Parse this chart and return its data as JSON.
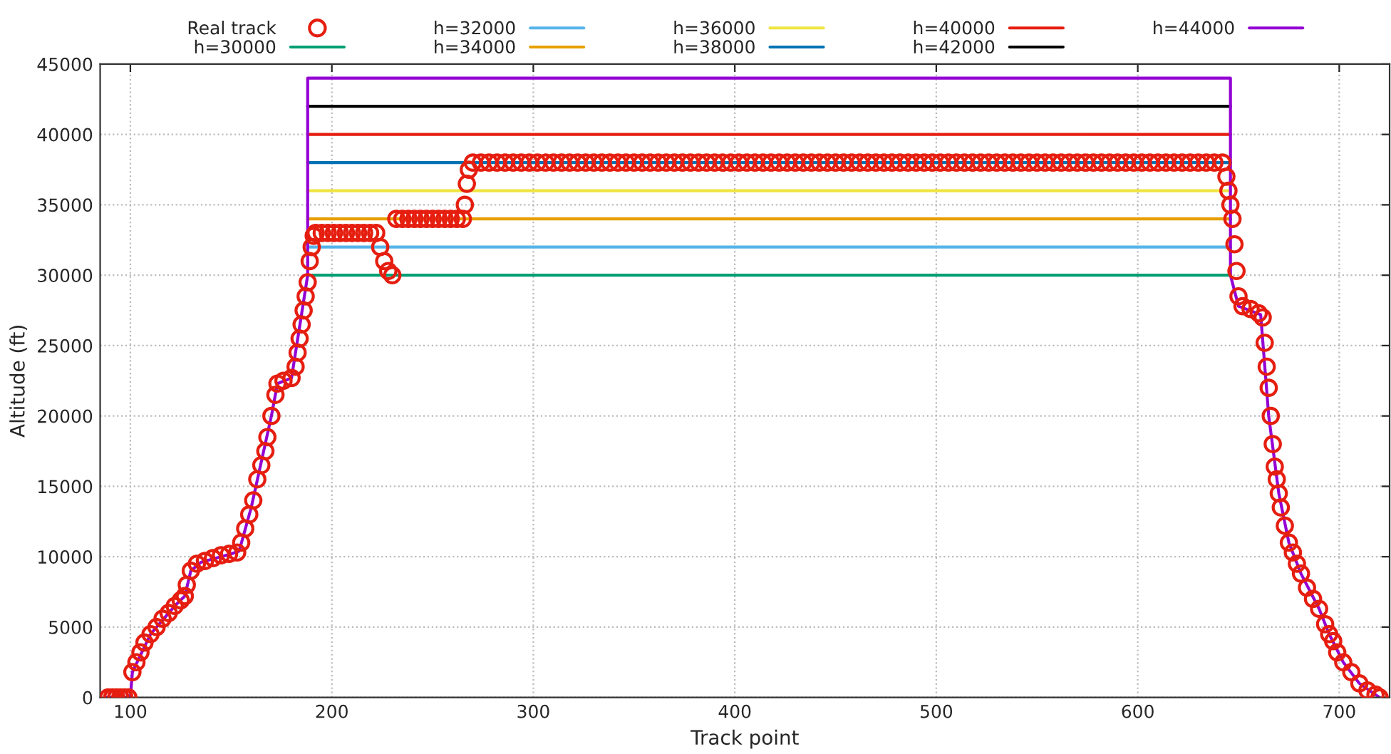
{
  "chart_data": {
    "type": "line",
    "xlabel": "Track point",
    "ylabel": "Altitude (ft)",
    "xlim": [
      85,
      725
    ],
    "xticks": [
      100,
      200,
      300,
      400,
      500,
      600,
      700
    ],
    "ylim": [
      0,
      45000
    ],
    "yticks": [
      0,
      5000,
      10000,
      15000,
      20000,
      25000,
      30000,
      35000,
      40000,
      45000
    ],
    "grid": true,
    "legend": "top",
    "series": [
      {
        "name": "Real track",
        "type": "scatter",
        "marker": "circle",
        "color": "#e51e10",
        "x": [
          89,
          91,
          93,
          95,
          97,
          99,
          101,
          103,
          105,
          107,
          110,
          113,
          116,
          119,
          122,
          125,
          127,
          128,
          130,
          133,
          137,
          141,
          145,
          149,
          153,
          155,
          157,
          159,
          161,
          163,
          165,
          167,
          168,
          170,
          172,
          173,
          176,
          180,
          182,
          183,
          184,
          185,
          186,
          187,
          188,
          189,
          190,
          191,
          192,
          195,
          198,
          201,
          204,
          207,
          210,
          213,
          216,
          219,
          222,
          224,
          226,
          228,
          230,
          232,
          235,
          238,
          241,
          244,
          247,
          250,
          253,
          256,
          259,
          262,
          265,
          266,
          267,
          268,
          270,
          274,
          278,
          282,
          286,
          290,
          294,
          298,
          302,
          306,
          310,
          314,
          318,
          322,
          326,
          330,
          334,
          338,
          342,
          346,
          350,
          354,
          358,
          362,
          366,
          370,
          374,
          378,
          382,
          386,
          390,
          394,
          398,
          402,
          406,
          410,
          414,
          418,
          422,
          426,
          430,
          434,
          438,
          442,
          446,
          450,
          454,
          458,
          462,
          466,
          470,
          474,
          478,
          482,
          486,
          490,
          494,
          498,
          502,
          506,
          510,
          514,
          518,
          522,
          526,
          530,
          534,
          538,
          542,
          546,
          550,
          554,
          558,
          562,
          566,
          570,
          574,
          578,
          582,
          586,
          590,
          594,
          598,
          602,
          606,
          610,
          614,
          618,
          622,
          626,
          630,
          634,
          638,
          642,
          644,
          645,
          646,
          647,
          648,
          649,
          650,
          652,
          656,
          660,
          662,
          663,
          664,
          665,
          666,
          667,
          668,
          669,
          670,
          671,
          673,
          675,
          677,
          679,
          681,
          684,
          687,
          690,
          693,
          695,
          697,
          699,
          702,
          706,
          710,
          714,
          718,
          720
        ],
        "values": [
          0,
          0,
          0,
          0,
          0,
          0,
          1800,
          2500,
          3200,
          3900,
          4500,
          5000,
          5600,
          6000,
          6500,
          6900,
          7200,
          8000,
          9000,
          9500,
          9700,
          9900,
          10100,
          10200,
          10300,
          11000,
          12000,
          13000,
          14000,
          15500,
          16500,
          17500,
          18500,
          20000,
          21500,
          22300,
          22500,
          22700,
          23500,
          24500,
          25500,
          26500,
          27500,
          28500,
          29500,
          31000,
          32000,
          32800,
          33000,
          33000,
          33000,
          33000,
          33000,
          33000,
          33000,
          33000,
          33000,
          33000,
          33000,
          32000,
          31000,
          30300,
          30000,
          34000,
          34000,
          34000,
          34000,
          34000,
          34000,
          34000,
          34000,
          34000,
          34000,
          34000,
          34000,
          35000,
          36500,
          37500,
          38000,
          38000,
          38000,
          38000,
          38000,
          38000,
          38000,
          38000,
          38000,
          38000,
          38000,
          38000,
          38000,
          38000,
          38000,
          38000,
          38000,
          38000,
          38000,
          38000,
          38000,
          38000,
          38000,
          38000,
          38000,
          38000,
          38000,
          38000,
          38000,
          38000,
          38000,
          38000,
          38000,
          38000,
          38000,
          38000,
          38000,
          38000,
          38000,
          38000,
          38000,
          38000,
          38000,
          38000,
          38000,
          38000,
          38000,
          38000,
          38000,
          38000,
          38000,
          38000,
          38000,
          38000,
          38000,
          38000,
          38000,
          38000,
          38000,
          38000,
          38000,
          38000,
          38000,
          38000,
          38000,
          38000,
          38000,
          38000,
          38000,
          38000,
          38000,
          38000,
          38000,
          38000,
          38000,
          38000,
          38000,
          38000,
          38000,
          38000,
          38000,
          38000,
          38000,
          38000,
          38000,
          38000,
          38000,
          38000,
          38000,
          38000,
          38000,
          38000,
          38000,
          38000,
          37000,
          36000,
          35000,
          34000,
          32200,
          30300,
          28500,
          27800,
          27600,
          27300,
          27000,
          25200,
          23500,
          22000,
          20000,
          18000,
          16400,
          15500,
          14500,
          13500,
          12200,
          11000,
          10300,
          9500,
          8800,
          7800,
          7000,
          6300,
          5200,
          4500,
          4000,
          3200,
          2500,
          1800,
          1000,
          500,
          200,
          0
        ]
      },
      {
        "name": "h=30000",
        "color": "#009e73",
        "x": [
          188,
          646
        ],
        "values": [
          30000,
          30000
        ]
      },
      {
        "name": "h=32000",
        "color": "#56b4e9",
        "x": [
          188,
          646
        ],
        "values": [
          32000,
          32000
        ]
      },
      {
        "name": "h=34000",
        "color": "#e69f00",
        "x": [
          188,
          646
        ],
        "values": [
          34000,
          34000
        ]
      },
      {
        "name": "h=36000",
        "color": "#f0e442",
        "x": [
          188,
          646
        ],
        "values": [
          36000,
          36000
        ]
      },
      {
        "name": "h=38000",
        "color": "#0072b2",
        "x": [
          188,
          646
        ],
        "values": [
          38000,
          38000
        ]
      },
      {
        "name": "h=40000",
        "color": "#e51e10",
        "x": [
          188,
          646
        ],
        "values": [
          40000,
          40000
        ]
      },
      {
        "name": "h=42000",
        "color": "#000000",
        "x": [
          188,
          646
        ],
        "values": [
          42000,
          42000
        ]
      },
      {
        "name": "h=44000",
        "color": "#9400d3",
        "x": [
          88,
          100,
          101,
          110,
          122,
          127,
          130,
          135,
          150,
          154,
          160,
          170,
          173,
          180,
          188,
          188,
          646,
          646,
          650,
          661,
          665,
          670,
          675,
          681,
          690,
          695,
          702,
          710,
          720
        ],
        "values": [
          0,
          0,
          1800,
          4500,
          6500,
          7200,
          9000,
          9600,
          10200,
          10400,
          13500,
          20000,
          22300,
          22700,
          30000,
          44000,
          44000,
          30000,
          27800,
          27200,
          20000,
          14500,
          11000,
          8800,
          6300,
          4500,
          2500,
          1000,
          0
        ]
      }
    ]
  }
}
